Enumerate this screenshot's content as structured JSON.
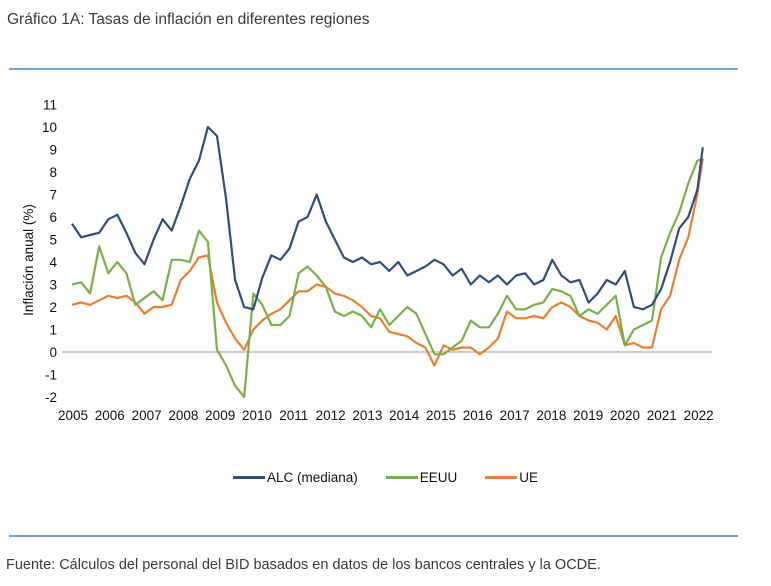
{
  "title": "Gráfico 1A: Tasas de inflación en diferentes regiones",
  "source": "Fuente: Cálculos del personal del BID basados en datos de los bancos centrales y la OCDE.",
  "chart_data": {
    "type": "line",
    "title": "Gráfico 1A: Tasas de inflación en diferentes regiones",
    "xlabel": "",
    "ylabel": "Inflación anual (%)",
    "ylim": [
      -2,
      11
    ],
    "xlim": [
      2005,
      2022.6
    ],
    "yticks": [
      "-2",
      "-1",
      "0",
      "1",
      "2",
      "3",
      "4",
      "5",
      "6",
      "7",
      "8",
      "9",
      "10",
      "11"
    ],
    "xticks": [
      "2005",
      "2006",
      "2007",
      "2008",
      "2009",
      "2010",
      "2011",
      "2012",
      "2013",
      "2014",
      "2015",
      "2016",
      "2017",
      "2018",
      "2019",
      "2020",
      "2021",
      "2022"
    ],
    "zero_line": true,
    "grid": false,
    "legend_position": "bottom",
    "series": [
      {
        "name": "ALC (mediana)",
        "color": "#2e4e7e",
        "x": [
          2005.0,
          2005.25,
          2005.5,
          2005.75,
          2006.0,
          2006.25,
          2006.5,
          2006.75,
          2007.0,
          2007.25,
          2007.5,
          2007.75,
          2008.0,
          2008.25,
          2008.5,
          2008.75,
          2009.0,
          2009.25,
          2009.5,
          2009.75,
          2010.0,
          2010.25,
          2010.5,
          2010.75,
          2011.0,
          2011.25,
          2011.5,
          2011.75,
          2012.0,
          2012.25,
          2012.5,
          2012.75,
          2013.0,
          2013.25,
          2013.5,
          2013.75,
          2014.0,
          2014.25,
          2014.5,
          2014.75,
          2015.0,
          2015.25,
          2015.5,
          2015.75,
          2016.0,
          2016.25,
          2016.5,
          2016.75,
          2017.0,
          2017.25,
          2017.5,
          2017.75,
          2018.0,
          2018.25,
          2018.5,
          2018.75,
          2019.0,
          2019.25,
          2019.5,
          2019.75,
          2020.0,
          2020.25,
          2020.5,
          2020.75,
          2021.0,
          2021.25,
          2021.5,
          2021.75,
          2022.0,
          2022.25,
          2022.4
        ],
        "values": [
          5.7,
          5.1,
          5.2,
          5.3,
          5.9,
          6.1,
          5.3,
          4.4,
          3.9,
          5.0,
          5.9,
          5.4,
          6.5,
          7.7,
          8.5,
          10.0,
          9.6,
          6.8,
          3.2,
          2.0,
          1.9,
          3.3,
          4.3,
          4.1,
          4.6,
          5.8,
          6.0,
          7.0,
          5.8,
          5.0,
          4.2,
          4.0,
          4.2,
          3.9,
          4.0,
          3.6,
          4.0,
          3.4,
          3.6,
          3.8,
          4.1,
          3.9,
          3.4,
          3.7,
          3.0,
          3.4,
          3.1,
          3.4,
          3.0,
          3.4,
          3.5,
          3.0,
          3.2,
          4.1,
          3.4,
          3.1,
          3.2,
          2.2,
          2.6,
          3.2,
          3.0,
          3.6,
          2.0,
          1.9,
          2.1,
          2.8,
          4.0,
          5.5,
          6.0,
          7.2,
          9.1
        ]
      },
      {
        "name": "EEUU",
        "color": "#78b04a",
        "x": [
          2005.0,
          2005.25,
          2005.5,
          2005.75,
          2006.0,
          2006.25,
          2006.5,
          2006.75,
          2007.0,
          2007.25,
          2007.5,
          2007.75,
          2008.0,
          2008.25,
          2008.5,
          2008.75,
          2009.0,
          2009.25,
          2009.5,
          2009.75,
          2010.0,
          2010.25,
          2010.5,
          2010.75,
          2011.0,
          2011.25,
          2011.5,
          2011.75,
          2012.0,
          2012.25,
          2012.5,
          2012.75,
          2013.0,
          2013.25,
          2013.5,
          2013.75,
          2014.0,
          2014.25,
          2014.5,
          2014.75,
          2015.0,
          2015.25,
          2015.5,
          2015.75,
          2016.0,
          2016.25,
          2016.5,
          2016.75,
          2017.0,
          2017.25,
          2017.5,
          2017.75,
          2018.0,
          2018.25,
          2018.5,
          2018.75,
          2019.0,
          2019.25,
          2019.5,
          2019.75,
          2020.0,
          2020.25,
          2020.5,
          2020.75,
          2021.0,
          2021.25,
          2021.5,
          2021.75,
          2022.0,
          2022.25,
          2022.4
        ],
        "values": [
          3.0,
          3.1,
          2.6,
          4.7,
          3.5,
          4.0,
          3.5,
          2.1,
          2.4,
          2.7,
          2.3,
          4.1,
          4.1,
          4.0,
          5.4,
          4.9,
          0.1,
          -0.6,
          -1.5,
          -2.0,
          2.6,
          2.1,
          1.2,
          1.2,
          1.6,
          3.5,
          3.8,
          3.4,
          2.9,
          1.8,
          1.6,
          1.8,
          1.6,
          1.1,
          1.9,
          1.2,
          1.6,
          2.0,
          1.7,
          0.8,
          -0.1,
          -0.1,
          0.2,
          0.5,
          1.4,
          1.1,
          1.1,
          1.7,
          2.5,
          1.9,
          1.9,
          2.1,
          2.2,
          2.8,
          2.7,
          2.5,
          1.6,
          1.9,
          1.7,
          2.1,
          2.5,
          0.3,
          1.0,
          1.2,
          1.4,
          4.2,
          5.3,
          6.2,
          7.5,
          8.5,
          8.6
        ]
      },
      {
        "name": "UE",
        "color": "#ed7d31",
        "x": [
          2005.0,
          2005.25,
          2005.5,
          2005.75,
          2006.0,
          2006.25,
          2006.5,
          2006.75,
          2007.0,
          2007.25,
          2007.5,
          2007.75,
          2008.0,
          2008.25,
          2008.5,
          2008.75,
          2009.0,
          2009.25,
          2009.5,
          2009.75,
          2010.0,
          2010.25,
          2010.5,
          2010.75,
          2011.0,
          2011.25,
          2011.5,
          2011.75,
          2012.0,
          2012.25,
          2012.5,
          2012.75,
          2013.0,
          2013.25,
          2013.5,
          2013.75,
          2014.0,
          2014.25,
          2014.5,
          2014.75,
          2015.0,
          2015.25,
          2015.5,
          2015.75,
          2016.0,
          2016.25,
          2016.5,
          2016.75,
          2017.0,
          2017.25,
          2017.5,
          2017.75,
          2018.0,
          2018.25,
          2018.5,
          2018.75,
          2019.0,
          2019.25,
          2019.5,
          2019.75,
          2020.0,
          2020.25,
          2020.5,
          2020.75,
          2021.0,
          2021.25,
          2021.5,
          2021.75,
          2022.0,
          2022.25,
          2022.4
        ],
        "values": [
          2.1,
          2.2,
          2.1,
          2.3,
          2.5,
          2.4,
          2.5,
          2.2,
          1.7,
          2.0,
          2.0,
          2.1,
          3.2,
          3.6,
          4.2,
          4.3,
          2.2,
          1.3,
          0.6,
          0.1,
          1.0,
          1.4,
          1.7,
          1.9,
          2.3,
          2.7,
          2.7,
          3.0,
          2.9,
          2.6,
          2.5,
          2.3,
          2.0,
          1.6,
          1.5,
          0.9,
          0.8,
          0.7,
          0.4,
          0.2,
          -0.6,
          0.3,
          0.1,
          0.2,
          0.2,
          -0.1,
          0.2,
          0.6,
          1.8,
          1.5,
          1.5,
          1.6,
          1.5,
          2.0,
          2.2,
          2.0,
          1.6,
          1.4,
          1.3,
          1.0,
          1.6,
          0.3,
          0.4,
          0.2,
          0.2,
          1.9,
          2.5,
          4.1,
          5.1,
          7.0,
          8.6
        ]
      }
    ]
  }
}
